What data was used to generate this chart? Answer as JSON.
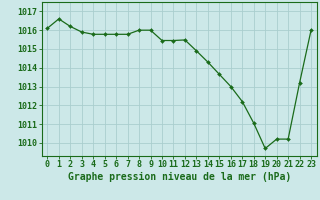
{
  "x": [
    0,
    1,
    2,
    3,
    4,
    5,
    6,
    7,
    8,
    9,
    10,
    11,
    12,
    13,
    14,
    15,
    16,
    17,
    18,
    19,
    20,
    21,
    22,
    23
  ],
  "y": [
    1016.1,
    1016.6,
    1016.2,
    1015.9,
    1015.78,
    1015.78,
    1015.78,
    1015.78,
    1016.0,
    1016.0,
    1015.45,
    1015.45,
    1015.48,
    1014.9,
    1014.3,
    1013.65,
    1013.0,
    1012.2,
    1011.05,
    1009.7,
    1010.2,
    1010.2,
    1013.2,
    1016.0
  ],
  "line_color": "#1a6b1a",
  "marker": "D",
  "marker_size": 2.0,
  "bg_color": "#cce8e8",
  "grid_color": "#aacece",
  "xlabel": "Graphe pression niveau de la mer (hPa)",
  "xlabel_fontsize": 7,
  "ylabel_ticks": [
    1010,
    1011,
    1012,
    1013,
    1014,
    1015,
    1016,
    1017
  ],
  "xlim": [
    -0.5,
    23.5
  ],
  "ylim": [
    1009.3,
    1017.5
  ],
  "tick_fontsize": 6.0,
  "title_color": "#1a6b1a"
}
